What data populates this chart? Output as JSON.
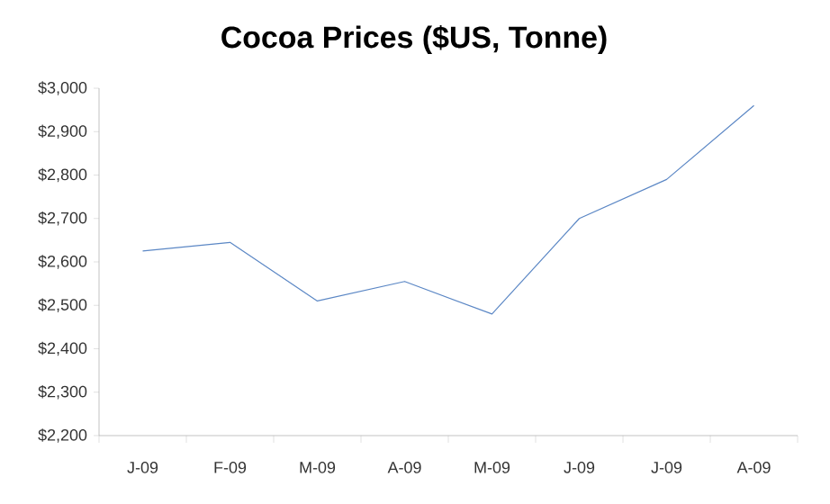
{
  "chart_data": {
    "type": "line",
    "title": "Cocoa Prices ($US, Tonne)",
    "categories": [
      "J-09",
      "F-09",
      "M-09",
      "A-09",
      "M-09",
      "J-09",
      "J-09",
      "A-09"
    ],
    "series": [
      {
        "color": "#5b87c5",
        "values": [
          2625,
          2645,
          2510,
          2555,
          2480,
          2700,
          2790,
          2960
        ]
      }
    ],
    "ylim": [
      2200,
      3000
    ],
    "yticks": [
      {
        "value": 2200,
        "label": "$2,200"
      },
      {
        "value": 2300,
        "label": "$2,300"
      },
      {
        "value": 2400,
        "label": "$2,400"
      },
      {
        "value": 2500,
        "label": "$2,500"
      },
      {
        "value": 2600,
        "label": "$2,600"
      },
      {
        "value": 2700,
        "label": "$2,700"
      },
      {
        "value": 2800,
        "label": "$2,800"
      },
      {
        "value": 2900,
        "label": "$2,900"
      },
      {
        "value": 3000,
        "label": "$3,000"
      }
    ],
    "grid": false
  }
}
